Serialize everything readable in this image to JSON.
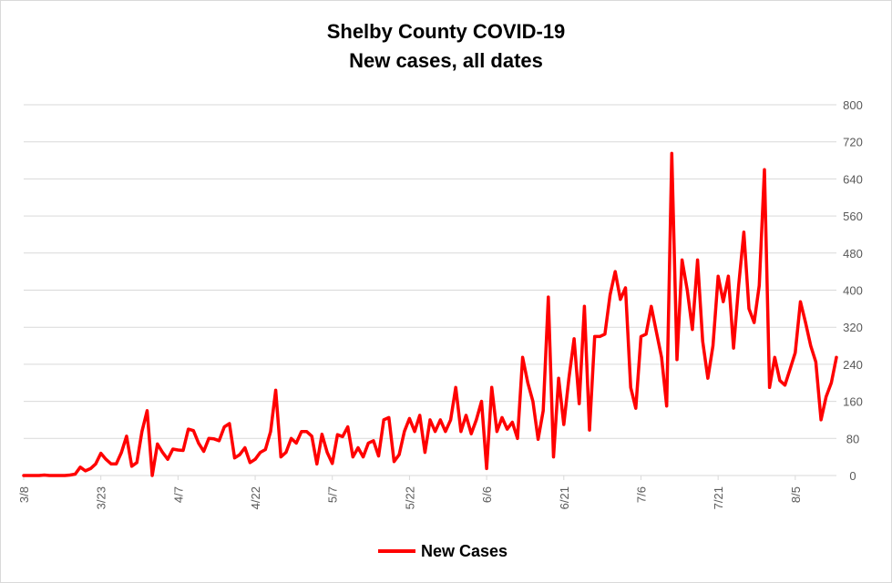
{
  "chart_data": {
    "type": "line",
    "title": "Shelby County COVID-19",
    "subtitle": "New cases, all dates",
    "ylim": [
      0,
      800
    ],
    "yticks": [
      0,
      80,
      160,
      240,
      320,
      400,
      480,
      560,
      640,
      720,
      800
    ],
    "ytick_labels": [
      "0",
      "80",
      "160",
      "240",
      "320",
      "400",
      "480",
      "560",
      "640",
      "720",
      "800"
    ],
    "x_ticks": [
      {
        "index": 0,
        "label": "3/8"
      },
      {
        "index": 15,
        "label": "3/23"
      },
      {
        "index": 30,
        "label": "4/7"
      },
      {
        "index": 45,
        "label": "4/22"
      },
      {
        "index": 60,
        "label": "5/7"
      },
      {
        "index": 75,
        "label": "5/22"
      },
      {
        "index": 90,
        "label": "6/6"
      },
      {
        "index": 105,
        "label": "6/21"
      },
      {
        "index": 120,
        "label": "7/6"
      },
      {
        "index": 135,
        "label": "7/21"
      },
      {
        "index": 150,
        "label": "8/5"
      }
    ],
    "series": [
      {
        "name": "New Cases",
        "color": "#ff0000",
        "values": [
          0,
          0,
          0,
          0,
          1,
          0,
          0,
          0,
          0,
          1,
          3,
          18,
          10,
          15,
          25,
          48,
          35,
          25,
          25,
          50,
          85,
          20,
          28,
          95,
          140,
          0,
          68,
          50,
          35,
          57,
          55,
          54,
          100,
          97,
          70,
          52,
          80,
          79,
          75,
          105,
          112,
          38,
          45,
          60,
          28,
          35,
          50,
          56,
          95,
          184,
          40,
          50,
          80,
          70,
          95,
          95,
          85,
          25,
          89,
          50,
          26,
          88,
          84,
          105,
          40,
          60,
          40,
          70,
          75,
          42,
          120,
          125,
          30,
          45,
          95,
          123,
          95,
          130,
          50,
          120,
          95,
          120,
          95,
          120,
          190,
          95,
          130,
          90,
          120,
          160,
          15,
          190,
          95,
          125,
          100,
          115,
          80,
          255,
          200,
          160,
          78,
          140,
          385,
          40,
          210,
          110,
          210,
          295,
          155,
          365,
          98,
          300,
          300,
          305,
          390,
          440,
          380,
          405,
          190,
          145,
          300,
          305,
          365,
          310,
          255,
          150,
          695,
          250,
          465,
          400,
          315,
          465,
          290,
          210,
          280,
          430,
          375,
          430,
          275,
          410,
          525,
          360,
          330,
          410,
          660,
          190,
          255,
          205,
          195,
          230,
          265,
          375,
          330,
          280,
          245,
          120,
          170,
          200,
          255
        ]
      }
    ],
    "legend": {
      "position": "bottom",
      "label": "New Cases"
    },
    "grid": true
  }
}
